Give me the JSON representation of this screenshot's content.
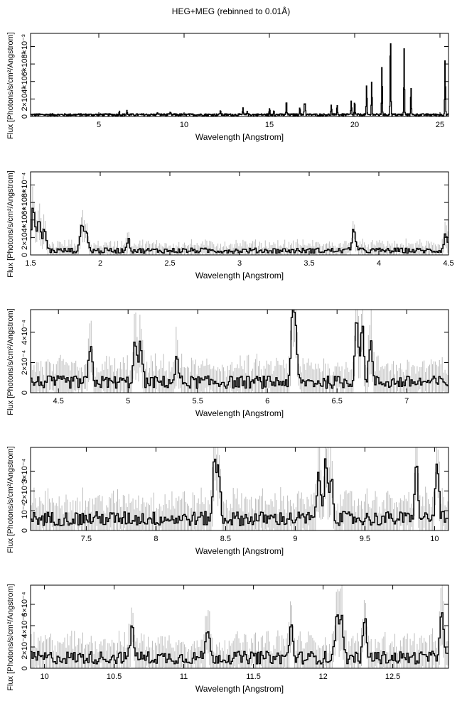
{
  "title": "HEG+MEG (rebinned to 0.01Å)",
  "colors": {
    "data": "#000000",
    "errorbar": "#bdbdbd",
    "axis": "#000000"
  },
  "chart_data": [
    {
      "type": "line",
      "xlabel": "Wavelength [Angstrom]",
      "ylabel": "Flux [Photons/s/cm²/Angstrom]",
      "xlim": [
        1.0,
        25.5
      ],
      "ylim": [
        0,
        0.0095
      ],
      "xticks": [
        5,
        10,
        15,
        20,
        25
      ],
      "yticks": [
        0,
        0.002,
        0.004,
        0.006,
        0.008
      ],
      "ytick_labels": [
        "0",
        "2×10⁻³",
        "4×10⁻³",
        "6×10⁻³",
        "8×10⁻³"
      ],
      "grid": false,
      "lines": [
        {
          "x": 6.2,
          "y": 0.0004
        },
        {
          "x": 6.65,
          "y": 0.0005
        },
        {
          "x": 8.45,
          "y": 0.0003
        },
        {
          "x": 9.2,
          "y": 0.0003
        },
        {
          "x": 12.13,
          "y": 0.0006
        },
        {
          "x": 13.45,
          "y": 0.0007
        },
        {
          "x": 13.7,
          "y": 0.0005
        },
        {
          "x": 15.01,
          "y": 0.0008
        },
        {
          "x": 15.26,
          "y": 0.0006
        },
        {
          "x": 16.0,
          "y": 0.0017
        },
        {
          "x": 16.78,
          "y": 0.0009
        },
        {
          "x": 17.05,
          "y": 0.0012
        },
        {
          "x": 17.1,
          "y": 0.0013
        },
        {
          "x": 18.63,
          "y": 0.0011
        },
        {
          "x": 18.97,
          "y": 0.0012
        },
        {
          "x": 19.8,
          "y": 0.0015
        },
        {
          "x": 20.0,
          "y": 0.0016
        },
        {
          "x": 20.7,
          "y": 0.0033
        },
        {
          "x": 21.0,
          "y": 0.0038
        },
        {
          "x": 21.6,
          "y": 0.0057
        },
        {
          "x": 22.1,
          "y": 0.0095
        },
        {
          "x": 22.9,
          "y": 0.0075
        },
        {
          "x": 23.3,
          "y": 0.0032
        },
        {
          "x": 25.3,
          "y": 0.0063
        }
      ],
      "continuum": 0.0002
    },
    {
      "type": "line",
      "xlabel": "Wavelength [Angstrom]",
      "ylabel": "Flux [Photons/s/cm²/Angstrom]",
      "xlim": [
        1.5,
        4.5
      ],
      "ylim": [
        0,
        0.00095
      ],
      "xticks": [
        1.5,
        2,
        2.5,
        3,
        3.5,
        4,
        4.5
      ],
      "yticks": [
        0,
        0.0002,
        0.0004,
        0.0006,
        0.0008
      ],
      "ytick_labels": [
        "0",
        "2×10⁻⁴",
        "4×10⁻⁴",
        "6×10⁻⁴",
        "8×10⁻⁴"
      ],
      "grid": false,
      "lines": [
        {
          "x": 1.52,
          "y": 0.0005
        },
        {
          "x": 1.56,
          "y": 0.00035
        },
        {
          "x": 1.6,
          "y": 0.00025
        },
        {
          "x": 1.87,
          "y": 0.00031
        },
        {
          "x": 1.9,
          "y": 0.0002
        },
        {
          "x": 2.2,
          "y": 0.00012
        },
        {
          "x": 3.82,
          "y": 0.00025
        },
        {
          "x": 4.48,
          "y": 0.0002
        }
      ],
      "continuum": 5e-05
    },
    {
      "type": "line",
      "xlabel": "Wavelength [Angstrom]",
      "ylabel": "Flux [Photons/s/cm²/Angstrom]",
      "xlim": [
        4.3,
        7.3
      ],
      "ylim": [
        0,
        0.00055
      ],
      "xticks": [
        4.5,
        5,
        5.5,
        6,
        6.5,
        7
      ],
      "yticks": [
        0,
        0.0002,
        0.0004
      ],
      "ytick_labels": [
        "0",
        "2×10⁻⁴",
        "4×10⁻⁴"
      ],
      "grid": false,
      "lines": [
        {
          "x": 4.73,
          "y": 0.00023
        },
        {
          "x": 5.05,
          "y": 0.00026
        },
        {
          "x": 5.09,
          "y": 0.00025
        },
        {
          "x": 5.35,
          "y": 0.00015
        },
        {
          "x": 6.18,
          "y": 0.00038
        },
        {
          "x": 6.2,
          "y": 0.00033
        },
        {
          "x": 6.64,
          "y": 0.00042
        },
        {
          "x": 6.68,
          "y": 0.00036
        },
        {
          "x": 6.74,
          "y": 0.00027
        }
      ],
      "continuum": 7e-05
    },
    {
      "type": "line",
      "xlabel": "Wavelength [Angstrom]",
      "ylabel": "Flux [Photons/s/cm²/Angstrom]",
      "xlim": [
        7.1,
        10.1
      ],
      "ylim": [
        0,
        0.00042
      ],
      "xticks": [
        7.5,
        8,
        8.5,
        9,
        9.5,
        10
      ],
      "yticks": [
        0,
        0.0001,
        0.0002,
        0.0003
      ],
      "ytick_labels": [
        "0",
        "10⁻⁴",
        "2×10⁻⁴",
        "3×10⁻⁴"
      ],
      "grid": false,
      "lines": [
        {
          "x": 8.42,
          "y": 0.00028
        },
        {
          "x": 8.45,
          "y": 0.00025
        },
        {
          "x": 9.17,
          "y": 0.00024
        },
        {
          "x": 9.22,
          "y": 0.00029
        },
        {
          "x": 9.26,
          "y": 0.00022
        },
        {
          "x": 9.87,
          "y": 0.00026
        },
        {
          "x": 10.02,
          "y": 0.00028
        }
      ],
      "continuum": 6e-05
    },
    {
      "type": "line",
      "xlabel": "Wavelength [Angstrom]",
      "ylabel": "Flux [Photons/s/cm²/Angstrom]",
      "xlim": [
        9.9,
        12.9
      ],
      "ylim": [
        0,
        0.00078
      ],
      "xticks": [
        10,
        10.5,
        11,
        11.5,
        12,
        12.5
      ],
      "yticks": [
        0,
        0.0002,
        0.0004,
        0.0006
      ],
      "ytick_labels": [
        "0",
        "2×10⁻⁴",
        "4×10⁻⁴",
        "6×10⁻⁴"
      ],
      "grid": false,
      "lines": [
        {
          "x": 10.63,
          "y": 0.0003
        },
        {
          "x": 11.17,
          "y": 0.0003
        },
        {
          "x": 11.77,
          "y": 0.0003
        },
        {
          "x": 12.1,
          "y": 0.00042
        },
        {
          "x": 12.13,
          "y": 0.00038
        },
        {
          "x": 12.3,
          "y": 0.00036
        },
        {
          "x": 12.85,
          "y": 0.00048
        }
      ],
      "continuum": 0.0001
    }
  ]
}
